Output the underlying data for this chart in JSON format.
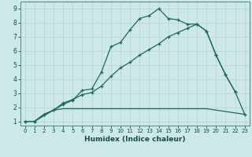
{
  "xlabel": "Humidex (Indice chaleur)",
  "background_color": "#cce8e8",
  "grid_color": "#b8d8d8",
  "line_color": "#1a6b5a",
  "xlim": [
    -0.5,
    23.5
  ],
  "ylim": [
    0.7,
    9.5
  ],
  "xticks": [
    0,
    1,
    2,
    3,
    4,
    5,
    6,
    7,
    8,
    9,
    10,
    11,
    12,
    13,
    14,
    15,
    16,
    17,
    18,
    19,
    20,
    21,
    22,
    23
  ],
  "yticks": [
    1,
    2,
    3,
    4,
    5,
    6,
    7,
    8,
    9
  ],
  "line1_x": [
    0,
    1,
    2,
    3,
    4,
    5,
    6,
    7,
    8,
    9,
    10,
    11,
    12,
    13,
    14,
    15,
    16,
    17,
    18,
    19,
    20,
    21,
    22
  ],
  "line1_y": [
    1.0,
    1.0,
    1.5,
    1.8,
    2.2,
    2.5,
    3.2,
    3.3,
    4.5,
    6.3,
    6.6,
    7.5,
    8.3,
    8.5,
    9.0,
    8.3,
    8.2,
    7.9,
    7.9,
    7.4,
    5.7,
    4.3,
    3.1
  ],
  "line2_x": [
    0,
    1,
    2,
    3,
    4,
    5,
    6,
    7,
    8,
    9,
    10,
    11,
    12,
    13,
    14,
    15,
    16,
    17,
    18,
    19,
    20,
    21,
    22,
    23
  ],
  "line2_y": [
    1.0,
    1.0,
    1.5,
    1.8,
    2.3,
    2.55,
    2.9,
    3.05,
    3.5,
    4.2,
    4.8,
    5.2,
    5.7,
    6.1,
    6.5,
    7.0,
    7.3,
    7.6,
    7.9,
    7.4,
    5.7,
    4.3,
    3.1,
    1.5
  ],
  "line3_x": [
    0,
    1,
    3,
    4,
    5,
    15,
    19,
    22,
    23
  ],
  "line3_y": [
    1.0,
    1.0,
    1.8,
    1.9,
    1.9,
    1.9,
    1.9,
    1.6,
    1.5
  ]
}
